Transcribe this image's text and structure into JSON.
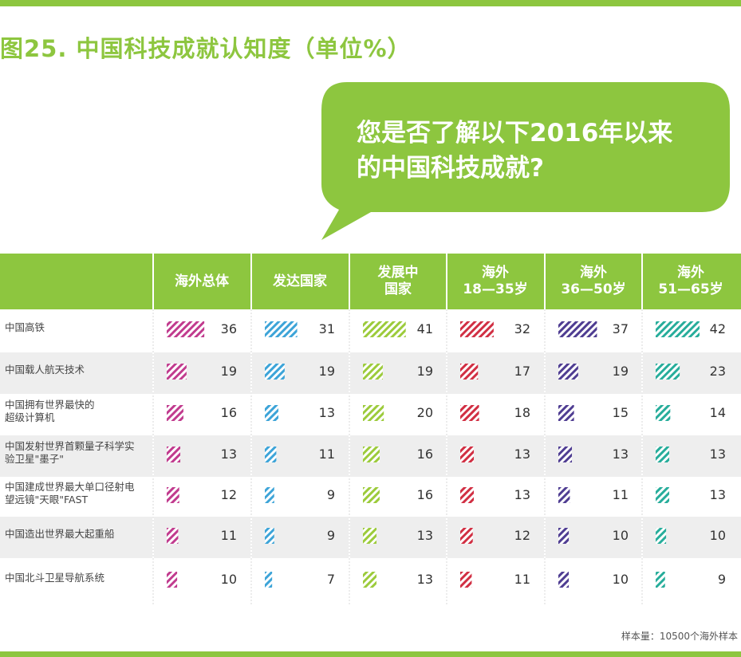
{
  "title": "图25. 中国科技成就认知度（单位%）",
  "bubble_text": "您是否了解以下2016年以来\n的中国科技成就?",
  "note": "样本量：10500个海外样本",
  "colors": {
    "brand_green": "#8dc63f",
    "series": [
      "#c13b8e",
      "#3da4d8",
      "#9ccb3b",
      "#d12f43",
      "#4f3d92",
      "#27ad9b"
    ]
  },
  "chart_data": {
    "type": "table",
    "title": "图25. 中国科技成就认知度（单位%）",
    "columns": [
      "海外总体",
      "发达国家",
      "发展中\n国家",
      "海外\n18—35岁",
      "海外\n36—50岁",
      "海外\n51—65岁"
    ],
    "rows": [
      {
        "label": "中国高铁",
        "values": [
          36,
          31,
          41,
          32,
          37,
          42
        ]
      },
      {
        "label": "中国载人航天技术",
        "values": [
          19,
          19,
          19,
          17,
          19,
          23
        ]
      },
      {
        "label": "中国拥有世界最快的\n超级计算机",
        "values": [
          16,
          13,
          20,
          18,
          15,
          14
        ]
      },
      {
        "label": "中国发射世界首颗量子科学实\n验卫星\"墨子\"",
        "values": [
          13,
          11,
          16,
          13,
          13,
          13
        ]
      },
      {
        "label": "中国建成世界最大单口径射电\n望远镜\"天眼\"FAST",
        "values": [
          12,
          9,
          16,
          13,
          11,
          13
        ]
      },
      {
        "label": "中国造出世界最大起重船",
        "values": [
          11,
          9,
          13,
          12,
          10,
          10
        ]
      },
      {
        "label": "中国北斗卫星导航系统",
        "values": [
          10,
          7,
          13,
          11,
          10,
          9
        ]
      }
    ]
  }
}
